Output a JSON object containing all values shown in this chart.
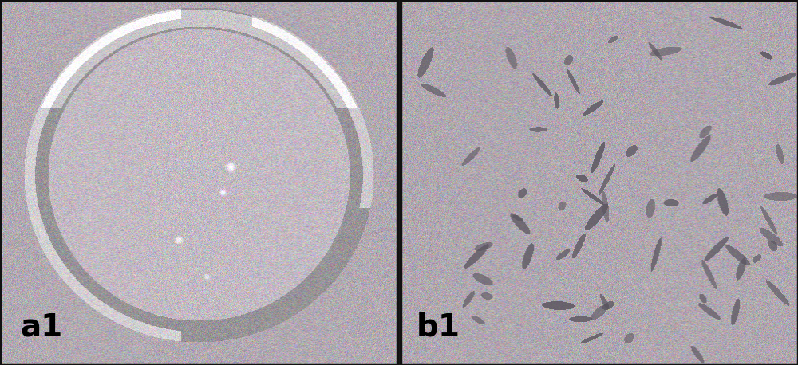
{
  "figsize": [
    10.0,
    4.58
  ],
  "dpi": 100,
  "bg_r": 178,
  "bg_g": 170,
  "bg_b": 178,
  "noise_std": 18,
  "label_a": "a1",
  "label_b": "b1",
  "label_fontsize": 28,
  "label_color": "black",
  "bacteria_color_r": 90,
  "bacteria_color_g": 85,
  "bacteria_color_b": 95,
  "panel_split": 0.499
}
